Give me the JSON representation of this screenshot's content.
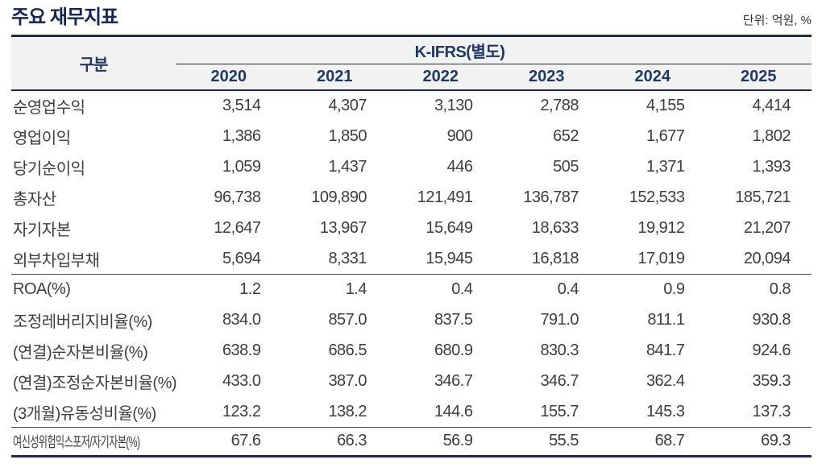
{
  "title": "주요 재무지표",
  "unit_label": "단위: 억원, %",
  "colors": {
    "navy_text": "#1f3864",
    "line_navy": "#1b2c55",
    "body_text": "#3e3e3e",
    "header_band": "#f2f2f2"
  },
  "table": {
    "category_header": "구분",
    "group_header": "K-IFRS(별도)",
    "years": [
      "2020",
      "2021",
      "2022",
      "2023",
      "2024",
      "2025"
    ],
    "rows": [
      {
        "label": "순영업수익",
        "values": [
          "3,514",
          "4,307",
          "3,130",
          "2,788",
          "4,155",
          "4,414"
        ]
      },
      {
        "label": "영업이익",
        "values": [
          "1,386",
          "1,850",
          "900",
          "652",
          "1,677",
          "1,802"
        ]
      },
      {
        "label": "당기순이익",
        "values": [
          "1,059",
          "1,437",
          "446",
          "505",
          "1,371",
          "1,393"
        ]
      },
      {
        "label": "총자산",
        "values": [
          "96,738",
          "109,890",
          "121,491",
          "136,787",
          "152,533",
          "185,721"
        ]
      },
      {
        "label": "자기자본",
        "values": [
          "12,647",
          "13,967",
          "15,649",
          "18,633",
          "19,912",
          "21,207"
        ]
      },
      {
        "label": "외부차입부채",
        "values": [
          "5,694",
          "8,331",
          "15,945",
          "16,818",
          "17,019",
          "20,094"
        ],
        "divider_after": true
      },
      {
        "label": "ROA(%)",
        "values": [
          "1.2",
          "1.4",
          "0.4",
          "0.4",
          "0.9",
          "0.8"
        ]
      },
      {
        "label": "조정레버리지비율(%)",
        "values": [
          "834.0",
          "857.0",
          "837.5",
          "791.0",
          "811.1",
          "930.8"
        ]
      },
      {
        "label": "(연결)순자본비율(%)",
        "values": [
          "638.9",
          "686.5",
          "680.9",
          "830.3",
          "841.7",
          "924.6"
        ]
      },
      {
        "label": "(연결)조정순자본비율(%)",
        "values": [
          "433.0",
          "387.0",
          "346.7",
          "346.7",
          "362.4",
          "359.3"
        ]
      },
      {
        "label": "(3개월)유동성비율(%)",
        "values": [
          "123.2",
          "138.2",
          "144.6",
          "155.7",
          "145.3",
          "137.3"
        ],
        "divider_after": true
      },
      {
        "label": "여신성위험익스포저/자기자본(%)",
        "values": [
          "67.6",
          "66.3",
          "56.9",
          "55.5",
          "68.7",
          "69.3"
        ],
        "condensed": true
      }
    ]
  }
}
